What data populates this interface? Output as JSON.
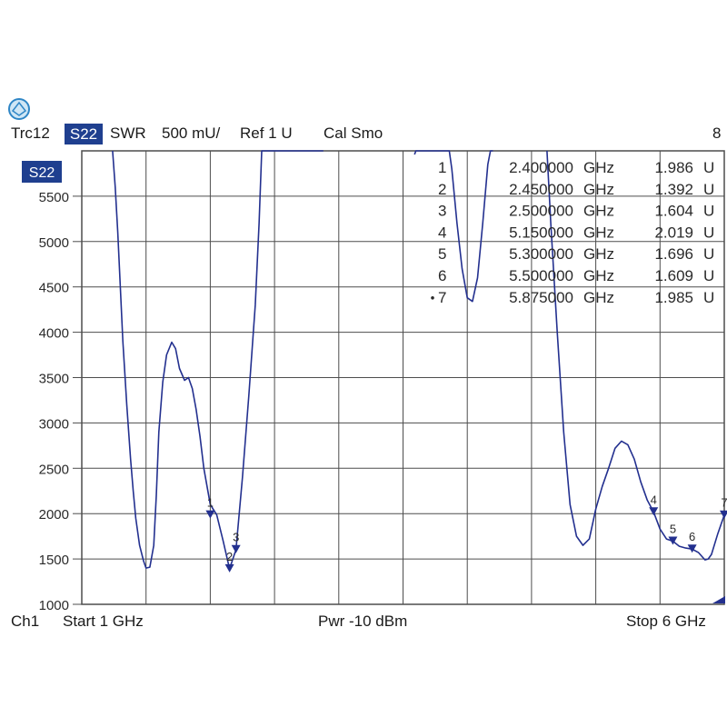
{
  "header": {
    "trace_id": "Trc12",
    "trace_param": "S22",
    "format": "SWR",
    "scale": "500 mU/",
    "ref": "Ref 1 U",
    "cal": "Cal Smo",
    "trace_number": "8"
  },
  "footer": {
    "channel": "Ch1",
    "start": "Start  1 GHz",
    "power": "Pwr  -10 dBm",
    "stop": "Stop  6 GHz"
  },
  "colors": {
    "trace": "#23308f",
    "grid": "#4d4d4d",
    "badge": "#1f3f8f"
  },
  "icons": {
    "logo": "rohde-schwarz-logo-icon"
  },
  "chart_data": {
    "type": "line",
    "trace_label": "S22",
    "xlim": [
      1.0,
      6.0
    ],
    "x_unit": "GHz",
    "ylim": [
      1000,
      6000
    ],
    "y_ticks": [
      1000,
      1500,
      2000,
      2500,
      3000,
      3500,
      4000,
      4500,
      5000,
      5500
    ],
    "grid": true,
    "series": [
      {
        "x": [
          1.24,
          1.26,
          1.28,
          1.3,
          1.32,
          1.35,
          1.38,
          1.4,
          1.42,
          1.45,
          1.48,
          1.5,
          1.53,
          1.56,
          1.58,
          1.6,
          1.63,
          1.66,
          1.7,
          1.73,
          1.76,
          1.8,
          1.83,
          1.86,
          1.89,
          1.92,
          1.95,
          2.0,
          2.05,
          2.1,
          2.15,
          2.2,
          2.25,
          2.3,
          2.35,
          2.38,
          2.4,
          2.42,
          2.45,
          2.48,
          2.5,
          2.55,
          2.6,
          2.65,
          2.7,
          2.75,
          2.8,
          2.85,
          2.88
        ],
        "y": [
          6000,
          5600,
          5100,
          4500,
          3900,
          3200,
          2600,
          2250,
          1950,
          1650,
          1480,
          1400,
          1410,
          1650,
          2200,
          2900,
          3450,
          3750,
          3890,
          3820,
          3600,
          3470,
          3500,
          3380,
          3150,
          2850,
          2500,
          2100,
          1986,
          1700,
          1392,
          1604,
          2400,
          3300,
          4300,
          5200,
          6000,
          6000,
          6000,
          6000,
          6000,
          6000,
          6000,
          6000,
          6000,
          6000,
          6000,
          6000,
          6000
        ]
      },
      {
        "x": [
          3.59,
          3.6,
          3.62,
          3.65,
          3.7,
          3.75,
          3.8,
          3.84,
          3.86,
          3.88,
          3.92,
          3.96,
          4.0,
          4.04,
          4.08,
          4.12,
          4.16,
          4.18,
          4.2
        ],
        "y": [
          5960,
          6000,
          6000,
          6000,
          6000,
          6000,
          6000,
          6000,
          6000,
          5800,
          5200,
          4700,
          4380,
          4340,
          4600,
          5200,
          5850,
          6000,
          6000
        ]
      },
      {
        "x": [
          4.62,
          4.65,
          4.7,
          4.75,
          4.8,
          4.85,
          4.9,
          4.95,
          5.0,
          5.05,
          5.1,
          5.15,
          5.2,
          5.25,
          5.3,
          5.35,
          5.4,
          5.45,
          5.5,
          5.55,
          5.6,
          5.65,
          5.7,
          5.75,
          5.8,
          5.85,
          5.875,
          5.9,
          5.95,
          6.0
        ],
        "y": [
          6000,
          5200,
          4000,
          2900,
          2100,
          1750,
          1650,
          1720,
          2050,
          2300,
          2500,
          2720,
          2800,
          2760,
          2600,
          2350,
          2150,
          2019,
          1830,
          1720,
          1696,
          1640,
          1620,
          1609,
          1570,
          1490,
          1500,
          1550,
          1780,
          1985
        ]
      }
    ],
    "markers": [
      {
        "id": "1",
        "freq": "2.400000",
        "unit": "GHz",
        "value": "1.986",
        "value_unit": "U",
        "x": 2.0,
        "y": 1986,
        "active": false
      },
      {
        "id": "2",
        "freq": "2.450000",
        "unit": "GHz",
        "value": "1.392",
        "value_unit": "U",
        "x": 2.15,
        "y": 1392,
        "active": false
      },
      {
        "id": "3",
        "freq": "2.500000",
        "unit": "GHz",
        "value": "1.604",
        "value_unit": "U",
        "x": 2.2,
        "y": 1604,
        "active": false
      },
      {
        "id": "4",
        "freq": "5.150000",
        "unit": "GHz",
        "value": "2.019",
        "value_unit": "U",
        "x": 5.45,
        "y": 2019,
        "active": false
      },
      {
        "id": "5",
        "freq": "5.300000",
        "unit": "GHz",
        "value": "1.696",
        "value_unit": "U",
        "x": 5.6,
        "y": 1696,
        "active": false
      },
      {
        "id": "6",
        "freq": "5.500000",
        "unit": "GHz",
        "value": "1.609",
        "value_unit": "U",
        "x": 5.75,
        "y": 1609,
        "active": false
      },
      {
        "id": "7",
        "freq": "5.875000",
        "unit": "GHz",
        "value": "1.985",
        "value_unit": "U",
        "x": 6.0,
        "y": 1985,
        "active": true
      }
    ]
  }
}
